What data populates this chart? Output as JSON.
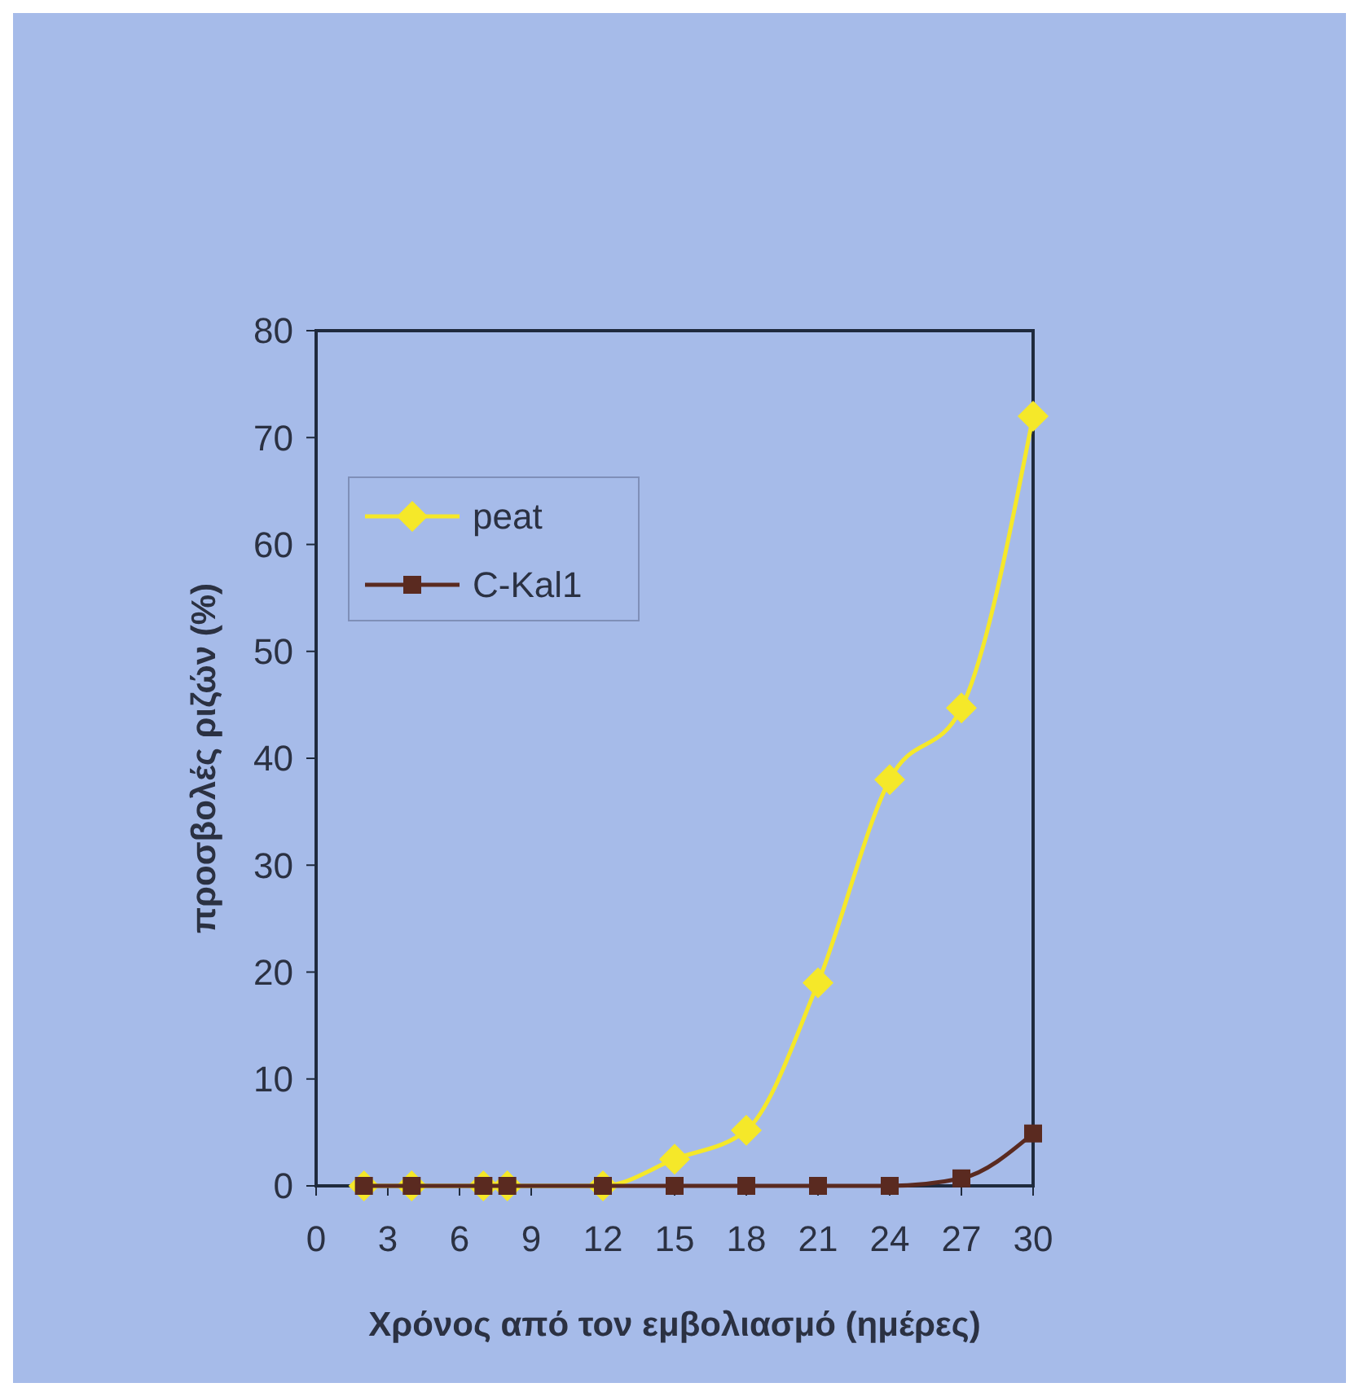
{
  "chart_data": {
    "type": "line",
    "xlabel": "Χρόνος από τον εμβολιασμό (ημέρες)",
    "ylabel": "προσβολές ριζών (%)",
    "x": [
      2,
      4,
      7,
      8,
      12,
      15,
      18,
      21,
      24,
      27,
      30
    ],
    "series": [
      {
        "name": "peat",
        "color": "#f5e829",
        "marker": "diamond",
        "values": [
          0,
          0,
          0,
          0,
          0,
          2.5,
          5.2,
          19,
          38,
          44.7,
          72
        ]
      },
      {
        "name": "C-Kal1",
        "color": "#5a2a20",
        "marker": "square",
        "values": [
          0,
          0,
          0,
          0,
          0,
          0,
          0,
          0,
          0,
          0.7,
          4.9
        ]
      }
    ],
    "xlim": [
      0,
      30
    ],
    "xticks": [
      0,
      3,
      6,
      9,
      12,
      15,
      18,
      21,
      24,
      27,
      30
    ],
    "ylim": [
      0,
      80
    ],
    "yticks": [
      0,
      10,
      20,
      30,
      40,
      50,
      60,
      70,
      80
    ],
    "grid": false,
    "legend": "top left",
    "line_style": "solid"
  }
}
